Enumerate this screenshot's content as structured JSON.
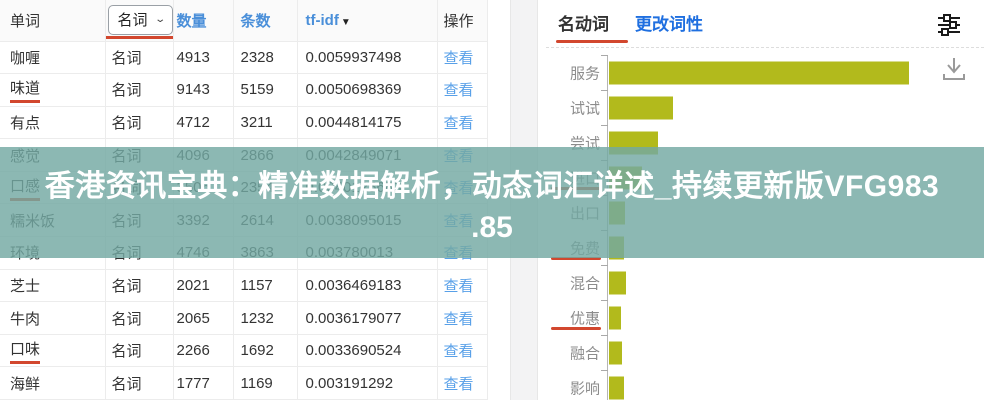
{
  "table": {
    "headers": {
      "word": "单词",
      "count": "数量",
      "docs": "条数",
      "tfidf": "tf-idf",
      "action": "操作"
    },
    "pos_filter": {
      "selected": "名词"
    },
    "rows": [
      {
        "word": "咖喱",
        "pos": "名词",
        "count": "4913",
        "docs": "2328",
        "tfidf": "0.0059937498",
        "action": "查看",
        "underlined": false
      },
      {
        "word": "味道",
        "pos": "名词",
        "count": "9143",
        "docs": "5159",
        "tfidf": "0.0050698369",
        "action": "查看",
        "underlined": true
      },
      {
        "word": "有点",
        "pos": "名词",
        "count": "4712",
        "docs": "3211",
        "tfidf": "0.0044814175",
        "action": "查看",
        "underlined": false
      },
      {
        "word": "感觉",
        "pos": "名词",
        "count": "4096",
        "docs": "2866",
        "tfidf": "0.0042849071",
        "action": "查看",
        "underlined": false
      },
      {
        "word": "口感",
        "pos": "名词",
        "count": "3506",
        "docs": "2354",
        "tfidf": "0.0040125683",
        "action": "查看",
        "underlined": true
      },
      {
        "word": "糯米饭",
        "pos": "名词",
        "count": "3392",
        "docs": "2614",
        "tfidf": "0.0038095015",
        "action": "查看",
        "underlined": false
      },
      {
        "word": "环境",
        "pos": "名词",
        "count": "4746",
        "docs": "3863",
        "tfidf": "0.003780013",
        "action": "查看",
        "underlined": false
      },
      {
        "word": "芝士",
        "pos": "名词",
        "count": "2021",
        "docs": "1157",
        "tfidf": "0.0036469183",
        "action": "查看",
        "underlined": false
      },
      {
        "word": "牛肉",
        "pos": "名词",
        "count": "2065",
        "docs": "1232",
        "tfidf": "0.0036179077",
        "action": "查看",
        "underlined": false
      },
      {
        "word": "口味",
        "pos": "名词",
        "count": "2266",
        "docs": "1692",
        "tfidf": "0.0033690524",
        "action": "查看",
        "underlined": true
      },
      {
        "word": "海鲜",
        "pos": "名词",
        "count": "1777",
        "docs": "1169",
        "tfidf": "0.003191292",
        "action": "查看",
        "underlined": false
      }
    ]
  },
  "panel": {
    "tabs": [
      {
        "label": "名动词",
        "active": true
      },
      {
        "label": "更改词性",
        "active": false
      }
    ],
    "icons": {
      "settings": "tune-icon",
      "download": "download-icon"
    }
  },
  "chart_data": {
    "type": "bar",
    "orientation": "horizontal",
    "title": "",
    "xlabel": "",
    "ylabel": "",
    "categories": [
      "服务",
      "试试",
      "尝试",
      "进口",
      "出口",
      "免费",
      "混合",
      "优惠",
      "融合",
      "影响"
    ],
    "values": [
      300,
      64,
      49,
      33,
      16,
      15,
      17,
      12,
      13,
      15
    ],
    "values_note": "no numeric axis shown; values estimated proportional to bar pixel length",
    "xlim": [
      0,
      310
    ],
    "grid": false,
    "legend": "none",
    "bar_color": "#b2ba1c",
    "underlined_categories": [
      "进口",
      "免费",
      "优惠"
    ]
  },
  "overlay": {
    "line1": "香港资讯宝典：精准数据解析，动态词汇详述_持续更新版VFG983",
    "line2": ".85",
    "band_color": "#73a8a2"
  },
  "colors": {
    "accent_red": "#d2472e",
    "header_blue": "#4a8fd9",
    "link_blue": "#58a0e8",
    "tab_blue": "#1f6fe0",
    "bar_olive": "#b2ba1c"
  }
}
